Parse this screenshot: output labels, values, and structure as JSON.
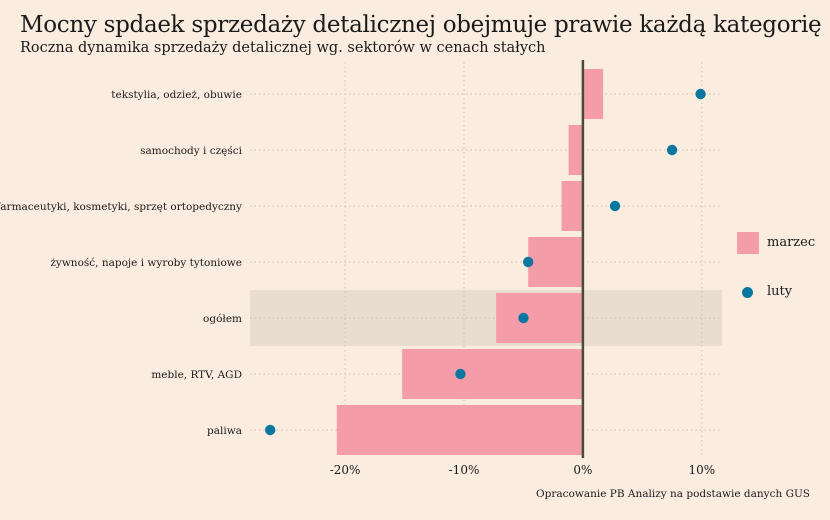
{
  "title": "Mocny spdaek sprzedaży detalicznej obejmuje prawie każdą kategorię",
  "subtitle": "Roczna dynamika sprzedaży detalicznej wg. sektorów w cenach stałych",
  "source": "Opracowanie PB Analizy na podstawie danych GUS",
  "colors": {
    "bar": "#f59ca9",
    "dot": "#0a77a0",
    "background": "#faede0",
    "highlight": "#e8ddd0",
    "zero_line": "#4a4a3a"
  },
  "chart_data": {
    "type": "bar",
    "orientation": "horizontal",
    "title": "Mocny spdaek sprzedaży detalicznej obejmuje prawie każdą kategorię",
    "subtitle": "Roczna dynamika sprzedaży detalicznej wg. sektorów w cenach stałych",
    "categories": [
      "tekstylia, odzież, obuwie",
      "samochody i części",
      "farmaceutyki, kosmetyki, sprzęt ortopedyczny",
      "żywność, napoje i wyroby tytoniowe",
      "ogółem",
      "meble, RTV, AGD",
      "paliwa"
    ],
    "highlighted_category": "ogółem",
    "series": [
      {
        "name": "marzec",
        "mark": "bar",
        "values": [
          1.7,
          -1.2,
          -1.8,
          -4.6,
          -7.3,
          -15.2,
          -20.7
        ]
      },
      {
        "name": "luty",
        "mark": "dot",
        "values": [
          9.9,
          7.5,
          2.7,
          -4.6,
          -5.0,
          -10.3,
          -26.3
        ]
      }
    ],
    "xlim": [
      -28,
      11.7
    ],
    "xticks": [
      -20,
      -10,
      0,
      10
    ],
    "xtick_labels": [
      "-20%",
      "-10%",
      "0%",
      "10%"
    ],
    "grid": true,
    "legend": "right"
  }
}
